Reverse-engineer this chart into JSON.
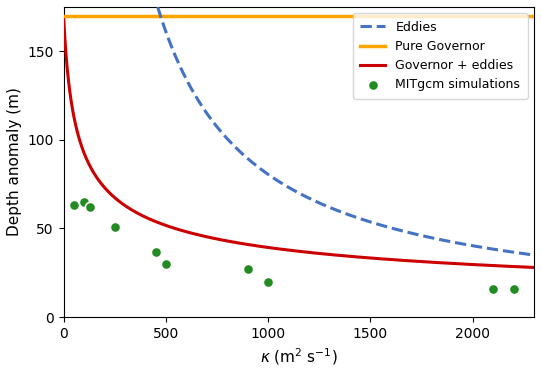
{
  "xlabel": "$\\kappa$ (m$^2$ s$^{-1}$)",
  "ylabel": "Depth anomaly (m)",
  "xlim": [
    0,
    2300
  ],
  "ylim": [
    0,
    175
  ],
  "pure_governor_value": 170,
  "pure_governor_color": "#FFA500",
  "eddies_color": "#4472C4",
  "governor_eddies_color": "#CC0000",
  "scatter_color": "#228B22",
  "scatter_edgecolor": "white",
  "scatter_x": [
    50,
    100,
    130,
    250,
    450,
    500,
    900,
    1000,
    2100,
    2200
  ],
  "scatter_y": [
    63,
    65,
    62,
    51,
    37,
    30,
    27,
    20,
    16,
    16
  ],
  "xticks": [
    0,
    500,
    1000,
    1500,
    2000
  ],
  "yticks": [
    0,
    50,
    100,
    150
  ],
  "eddies_C": 80000,
  "eddies_kappa0": 220,
  "gov_eddies_A": 170,
  "gov_eddies_alpha": 0.45,
  "gov_eddies_kappa0": 30
}
